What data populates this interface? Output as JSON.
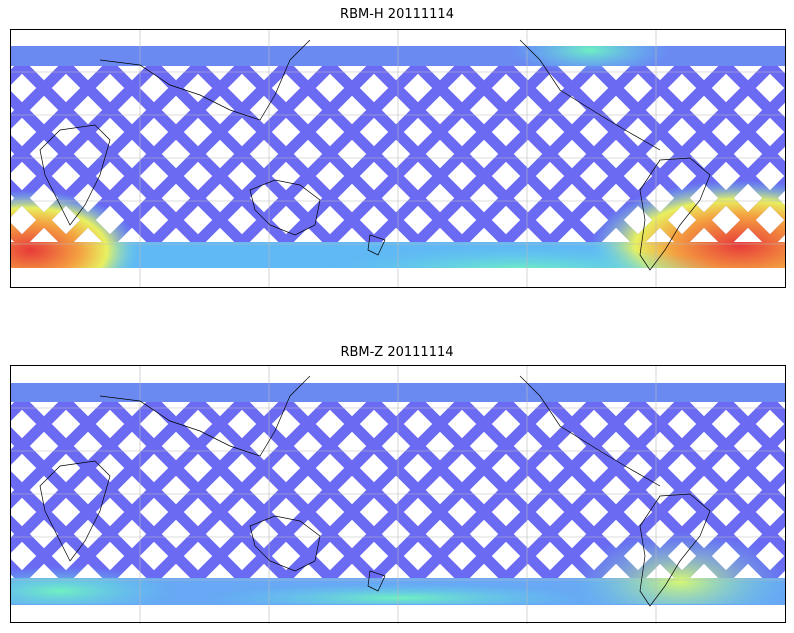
{
  "panels": [
    {
      "title": "RBM-H 20111114"
    },
    {
      "title": "RBM-Z 20111114"
    }
  ]
}
